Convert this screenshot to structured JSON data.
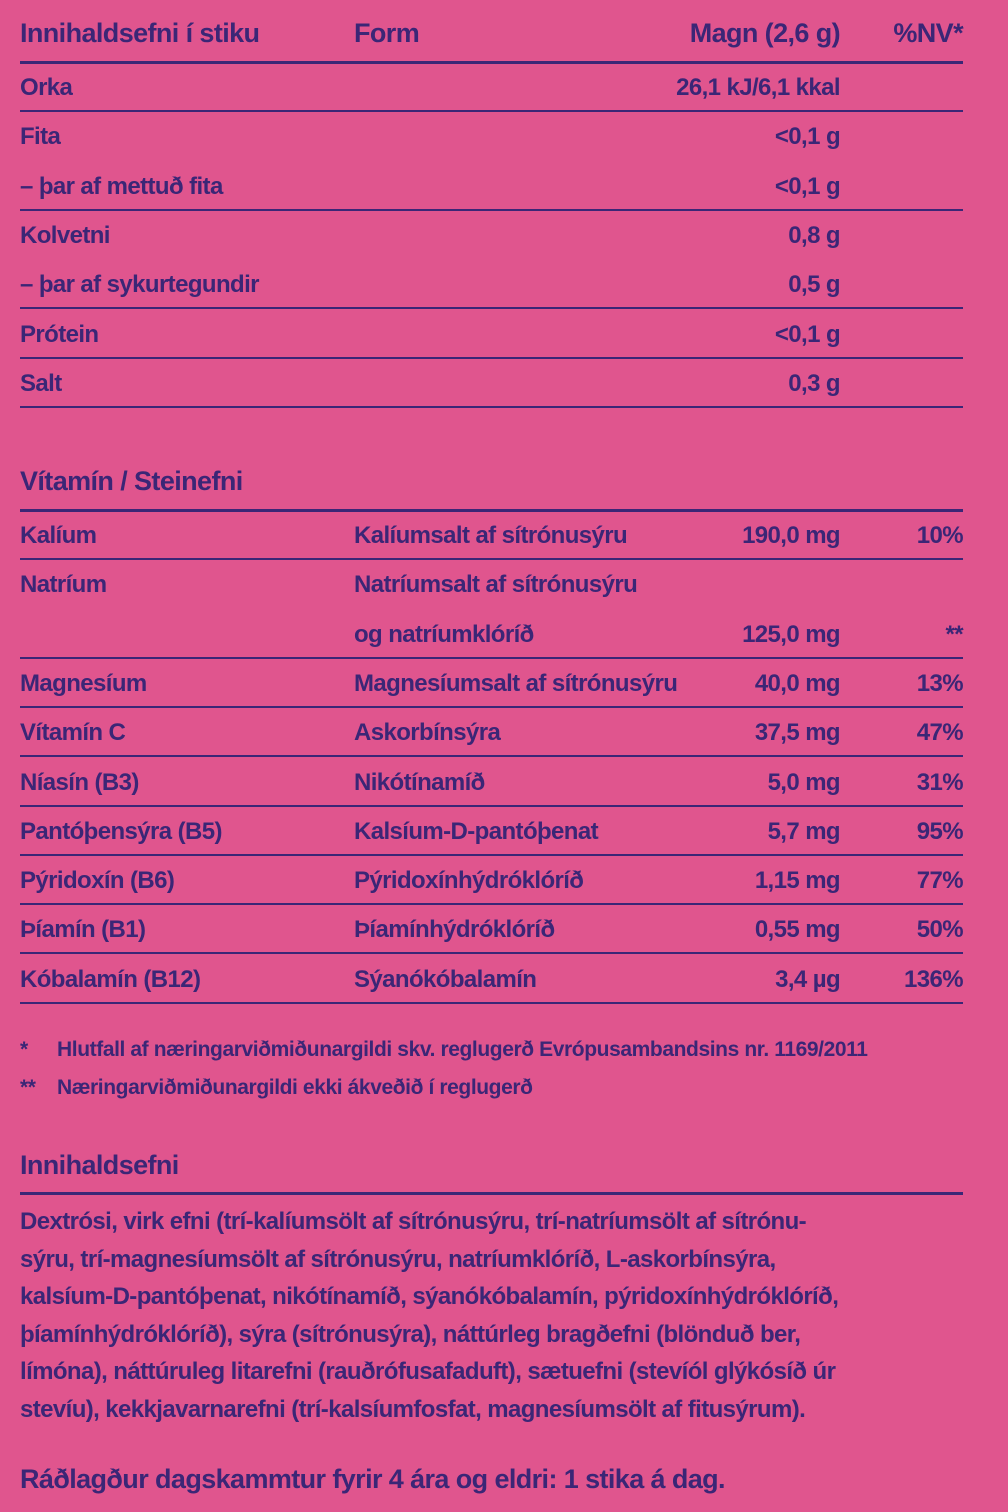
{
  "nutrition": {
    "headers": [
      "Innihaldsefni í stiku",
      "Form",
      "Magn (2,6 g)",
      "%NV*"
    ],
    "rows": [
      {
        "name": "Orka",
        "amount": "26,1 kJ/6,1 kkal"
      },
      {
        "name": "Fita",
        "amount": "<0,1 g"
      },
      {
        "name": "– þar af mettuð fita",
        "amount": "<0,1 g"
      },
      {
        "name": "Kolvetni",
        "amount": "0,8 g"
      },
      {
        "name": "– þar af sykurtegundir",
        "amount": "0,5 g"
      },
      {
        "name": "Prótein",
        "amount": "<0,1 g"
      },
      {
        "name": "Salt",
        "amount": "0,3 g"
      }
    ]
  },
  "vitamins": {
    "title": "Vítamín / Steinefni",
    "rows": [
      {
        "name": "Kalíum",
        "form": [
          "Kalíumsalt af sítrónusýru"
        ],
        "amount": "190,0 mg",
        "nv": "10%"
      },
      {
        "name": "Natríum",
        "form": [
          "Natríumsalt af sítrónusýru",
          "og natríumklóríð"
        ],
        "amount": "125,0 mg",
        "nv": "**"
      },
      {
        "name": "Magnesíum",
        "form": [
          "Magnesíumsalt af sítrónusýru"
        ],
        "amount": "40,0 mg",
        "nv": "13%"
      },
      {
        "name": "Vítamín C",
        "form": [
          "Askorbínsýra"
        ],
        "amount": "37,5 mg",
        "nv": "47%"
      },
      {
        "name": "Níasín (B3)",
        "form": [
          "Nikótínamíð"
        ],
        "amount": "5,0 mg",
        "nv": "31%"
      },
      {
        "name": "Pantóþensýra (B5)",
        "form": [
          "Kalsíum-D-pantóþenat"
        ],
        "amount": "5,7 mg",
        "nv": "95%"
      },
      {
        "name": "Pýridoxín (B6)",
        "form": [
          "Pýridoxínhýdróklóríð"
        ],
        "amount": "1,15 mg",
        "nv": "77%"
      },
      {
        "name": "Þíamín (B1)",
        "form": [
          "Þíamínhýdróklóríð"
        ],
        "amount": "0,55 mg",
        "nv": "50%"
      },
      {
        "name": "Kóbalamín (B12)",
        "form": [
          "Sýanókóbalamín"
        ],
        "amount": "3,4 µg",
        "nv": "136%"
      }
    ]
  },
  "footnotes": [
    {
      "mark": "*",
      "text": "Hlutfall af næringarviðmiðunargildi skv. reglugerð Evrópusambandsins nr. 1169/2011"
    },
    {
      "mark": "**",
      "text": "Næringarviðmiðunargildi ekki ákveðið í reglugerð"
    }
  ],
  "ingredients": {
    "title": "Innihaldsefni",
    "lines": [
      "Dextrósi, virk efni (trí-kalíumsölt af sítrónusýru, trí-natríumsölt af sítrónu-",
      "sýru, trí-magnesíumsölt af sítrónusýru, natríumklóríð, L-askorbínsýra,",
      "kalsíum-D-pantóþenat, nikótínamíð, sýanókóbalamín, pýridoxínhýdróklóríð,",
      "þíamínhýdróklóríð), sýra (sítrónusýra), náttúrleg bragðefni (blönduð ber,",
      "límóna), náttúruleg litarefni (rauðrófusafaduft), sætuefni (stevíól glýkósíð úr",
      "stevíu), kekkjavarnarefni (trí-kalsíumfosfat, magnesíumsölt af fitusýrum)."
    ]
  },
  "recommendation": "Ráðlagður dagskammtur fyrir 4 ára og eldri: 1 stika á dag."
}
